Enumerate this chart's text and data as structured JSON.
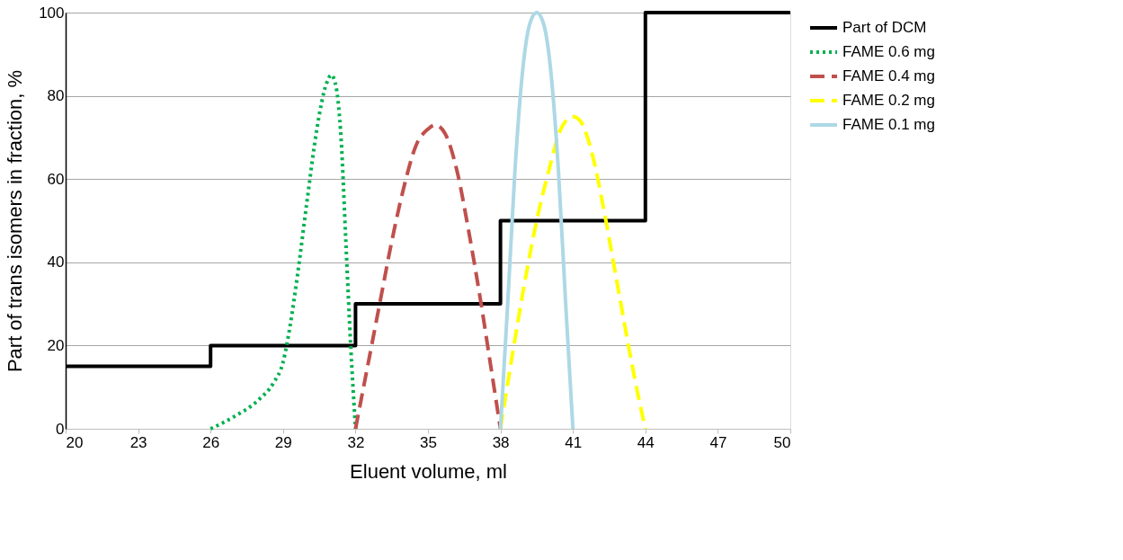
{
  "chart_data": {
    "type": "line",
    "xlabel": "Eluent volume, ml",
    "ylabel": "Part of trans isomers in fraction, %",
    "xlim": [
      20,
      50
    ],
    "xticks": [
      20,
      23,
      26,
      29,
      32,
      35,
      38,
      41,
      44,
      47,
      50
    ],
    "ylim": [
      0,
      100
    ],
    "yticks": [
      0,
      20,
      40,
      60,
      80,
      100
    ],
    "grid": "y",
    "legend": "right",
    "series": [
      {
        "name": "Part of DCM",
        "type": "step",
        "color": "#000000",
        "line_style": "solid",
        "x": [
          20,
          26,
          32,
          38,
          44,
          50
        ],
        "values": [
          15,
          20,
          30,
          50,
          100,
          100
        ]
      },
      {
        "name": "FAME 0.6 mg",
        "type": "line",
        "color": "#00b050",
        "line_style": "dotted",
        "x": [
          26,
          27,
          28,
          28.6,
          29,
          29.3,
          29.6,
          30,
          30.4,
          30.8,
          31,
          31.2,
          31.4,
          31.6,
          31.8,
          32
        ],
        "values": [
          0,
          3,
          7,
          11,
          16,
          25,
          37,
          55,
          72,
          83,
          85,
          82,
          70,
          45,
          20,
          0
        ]
      },
      {
        "name": "FAME 0.4 mg",
        "type": "line",
        "color": "#c0504d",
        "line_style": "dashed",
        "x": [
          32,
          32.5,
          33,
          33.5,
          34,
          34.5,
          35,
          35.3,
          35.7,
          36.2,
          36.7,
          37.2,
          37.6,
          38
        ],
        "values": [
          0,
          15,
          30,
          45,
          58,
          68,
          72,
          73,
          71,
          62,
          47,
          30,
          15,
          0
        ]
      },
      {
        "name": "FAME 0.2 mg",
        "type": "line",
        "color": "#ffff00",
        "line_style": "dashed",
        "x": [
          38,
          38.5,
          39,
          39.5,
          40,
          40.5,
          41,
          41.3,
          41.8,
          42.3,
          42.8,
          43.3,
          43.7,
          44
        ],
        "values": [
          0,
          18,
          35,
          50,
          62,
          72,
          75,
          74,
          66,
          52,
          36,
          20,
          8,
          0
        ]
      },
      {
        "name": "FAME 0.1 mg",
        "type": "line",
        "color": "#add8e6",
        "line_style": "solid",
        "x": [
          38,
          38.3,
          38.6,
          38.9,
          39.2,
          39.5,
          39.8,
          40.1,
          40.4,
          40.7,
          41
        ],
        "values": [
          0,
          30,
          62,
          85,
          97,
          100,
          97,
          85,
          62,
          30,
          0
        ]
      }
    ]
  }
}
